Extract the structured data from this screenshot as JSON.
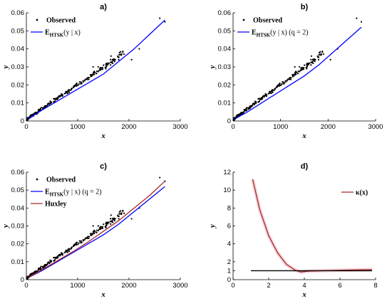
{
  "chart_data": [
    {
      "panel": "a)",
      "type": "scatter",
      "title": "a)",
      "xlabel": "x",
      "ylabel": "y",
      "xlim": [
        0,
        3000
      ],
      "ylim": [
        0,
        0.06
      ],
      "xticks": [
        "0",
        "1000",
        "2000",
        "3000"
      ],
      "yticks": [
        "0",
        "0.01",
        "0.02",
        "0.03",
        "0.04",
        "0.05",
        "0.06"
      ],
      "legend_position": "top-left",
      "series": [
        {
          "name": "Observed",
          "style": "points",
          "color": "#000000"
        },
        {
          "name": "E_HTSK(y | x)",
          "style": "line",
          "color": "#0000ff",
          "x": [
            30,
            300,
            600,
            900,
            1200,
            1500,
            1800,
            2100,
            2400,
            2700
          ],
          "y": [
            0.001,
            0.006,
            0.011,
            0.016,
            0.021,
            0.026,
            0.033,
            0.04,
            0.048,
            0.056
          ]
        }
      ]
    },
    {
      "panel": "b)",
      "type": "scatter",
      "title": "b)",
      "xlabel": "x",
      "ylabel": "y",
      "xlim": [
        0,
        3000
      ],
      "ylim": [
        0,
        0.06
      ],
      "xticks": [
        "0",
        "1000",
        "2000",
        "3000"
      ],
      "yticks": [
        "0",
        "0.01",
        "0.02",
        "0.03",
        "0.04",
        "0.05",
        "0.06"
      ],
      "legend_position": "top-left",
      "series": [
        {
          "name": "Observed",
          "style": "points",
          "color": "#000000"
        },
        {
          "name": "E_HTSK(y | x) (q = 2)",
          "style": "line",
          "color": "#0000ff",
          "x": [
            30,
            300,
            600,
            900,
            1200,
            1500,
            1800,
            2100,
            2400,
            2700
          ],
          "y": [
            0.001,
            0.005,
            0.01,
            0.015,
            0.02,
            0.025,
            0.031,
            0.038,
            0.045,
            0.052
          ]
        }
      ]
    },
    {
      "panel": "c)",
      "type": "scatter",
      "title": "c)",
      "xlabel": "x",
      "ylabel": "y",
      "xlim": [
        0,
        3000
      ],
      "ylim": [
        0,
        0.06
      ],
      "xticks": [
        "0",
        "1000",
        "2000",
        "3000"
      ],
      "yticks": [
        "0",
        "0.01",
        "0.02",
        "0.03",
        "0.04",
        "0.05",
        "0.06"
      ],
      "legend_position": "top-left",
      "series": [
        {
          "name": "Observed",
          "style": "points",
          "color": "#000000"
        },
        {
          "name": "E_HTSK(y | x) (q = 2)",
          "style": "line",
          "color": "#0000ff",
          "x": [
            30,
            300,
            600,
            900,
            1200,
            1500,
            1800,
            2100,
            2400,
            2700
          ],
          "y": [
            0.001,
            0.005,
            0.01,
            0.015,
            0.02,
            0.025,
            0.031,
            0.038,
            0.045,
            0.052
          ]
        },
        {
          "name": "Huxley",
          "style": "line",
          "color": "#a52a2a",
          "x": [
            30,
            300,
            600,
            900,
            1200,
            1500,
            1800,
            2100,
            2400,
            2700
          ],
          "y": [
            0.001,
            0.0055,
            0.0105,
            0.0155,
            0.021,
            0.027,
            0.033,
            0.04,
            0.047,
            0.055
          ]
        }
      ]
    },
    {
      "panel": "d)",
      "type": "line",
      "title": "d)",
      "xlabel": "x",
      "ylabel": "y",
      "xlim": [
        0,
        8
      ],
      "ylim": [
        0,
        12
      ],
      "xticks": [
        "0",
        "2",
        "4",
        "6",
        "8"
      ],
      "yticks": [
        "0",
        "1",
        "2",
        "4",
        "6",
        "8",
        "10",
        "12"
      ],
      "legend_position": "top-right",
      "series": [
        {
          "name": "κ(x)",
          "style": "line",
          "color": "#a52a2a",
          "x": [
            1.1,
            1.5,
            2.0,
            2.5,
            3.0,
            3.5,
            3.8,
            4.2,
            5.0,
            6.0,
            7.0,
            7.8
          ],
          "y": [
            11.2,
            7.8,
            4.9,
            3.0,
            1.7,
            1.05,
            0.85,
            0.95,
            1.0,
            1.05,
            1.1,
            1.12
          ]
        },
        {
          "name": "",
          "style": "line",
          "color": "#000000",
          "x": [
            1.0,
            7.8
          ],
          "y": [
            1.0,
            1.0
          ]
        }
      ]
    }
  ]
}
